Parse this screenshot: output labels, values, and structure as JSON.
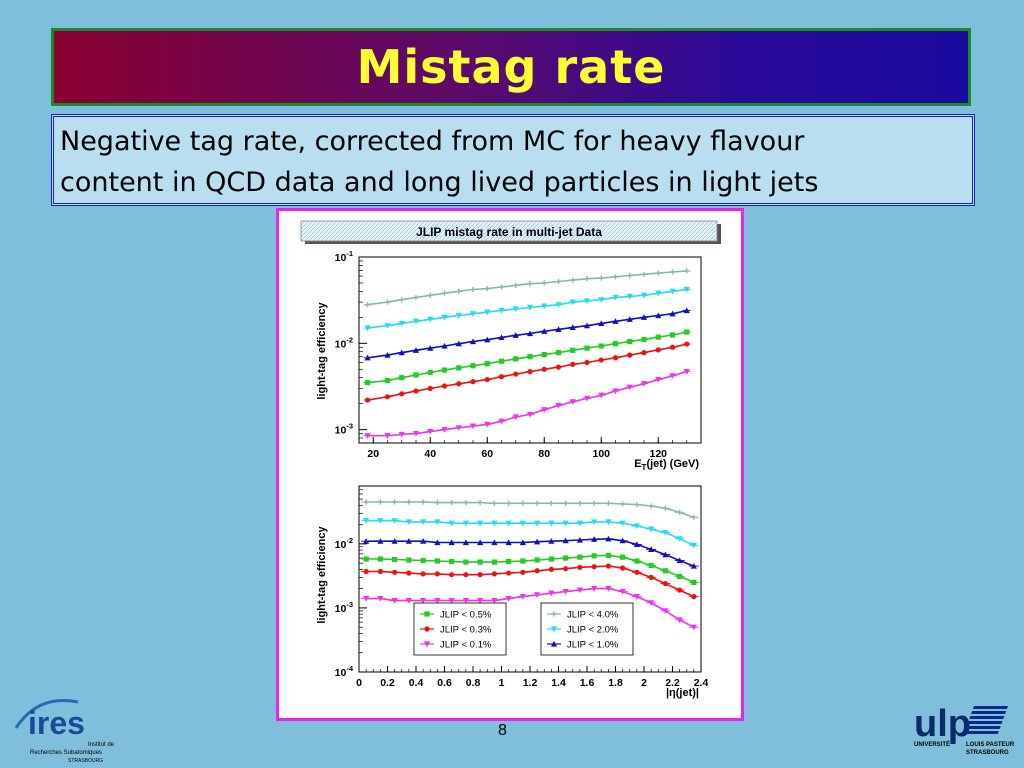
{
  "slide": {
    "title": "Mistag rate",
    "subtitle_line1": "Negative tag rate, corrected from MC for heavy flavour",
    "subtitle_line2": "content in QCD data and long lived particles in light jets",
    "page_number": "8"
  },
  "logos": {
    "ires_main": "ires",
    "ires_sub1": "Institut de",
    "ires_sub2": "Recherches Subatomiques",
    "ires_sub3": "STRASBOURG",
    "ulp_main": "ulp",
    "ulp_sub1": "UNIVERSITÉ",
    "ulp_sub2": "LOUIS PASTEUR",
    "ulp_sub3": "STRASBOURG"
  },
  "colors": {
    "jlip_0.5": "#22cc22",
    "jlip_0.3": "#ee1111",
    "jlip_0.1": "#ee33ee",
    "jlip_4.0": "#88bb99",
    "jlip_2.0": "#22ddee",
    "jlip_1.0": "#1111bb"
  },
  "chart_data": [
    {
      "type": "line",
      "title": "JLIP mistag rate in multi-jet Data",
      "xlabel": "E_T(jet) (GeV)",
      "ylabel": "light-tag efficiency",
      "xlim": [
        15,
        135
      ],
      "ylim": [
        0.0007,
        0.1
      ],
      "yscale": "log",
      "x_ticks": [
        20,
        40,
        60,
        80,
        100,
        120
      ],
      "y_ticks": [
        {
          "value": 0.001,
          "base": "10",
          "exp": "-3"
        },
        {
          "value": 0.01,
          "base": "10",
          "exp": "-2"
        },
        {
          "value": 0.1,
          "base": "10",
          "exp": "-1"
        }
      ],
      "x": [
        18,
        25,
        30,
        35,
        40,
        45,
        50,
        55,
        60,
        65,
        70,
        75,
        80,
        85,
        90,
        95,
        100,
        105,
        110,
        115,
        120,
        125,
        130
      ],
      "series": [
        {
          "name": "JLIP < 4.0%",
          "color_key": "jlip_4.0",
          "marker": "plus",
          "values": [
            0.028,
            0.03,
            0.032,
            0.034,
            0.036,
            0.038,
            0.04,
            0.042,
            0.043,
            0.045,
            0.047,
            0.049,
            0.05,
            0.052,
            0.054,
            0.056,
            0.057,
            0.059,
            0.061,
            0.063,
            0.065,
            0.067,
            0.069
          ]
        },
        {
          "name": "JLIP < 2.0%",
          "color_key": "jlip_2.0",
          "marker": "triangle-down",
          "values": [
            0.015,
            0.016,
            0.017,
            0.018,
            0.019,
            0.02,
            0.021,
            0.022,
            0.023,
            0.024,
            0.025,
            0.026,
            0.027,
            0.028,
            0.03,
            0.031,
            0.032,
            0.034,
            0.035,
            0.036,
            0.038,
            0.04,
            0.042
          ]
        },
        {
          "name": "JLIP < 1.0%",
          "color_key": "jlip_1.0",
          "marker": "triangle",
          "values": [
            0.0068,
            0.0073,
            0.0078,
            0.0083,
            0.0088,
            0.0093,
            0.0099,
            0.0105,
            0.011,
            0.0117,
            0.0124,
            0.013,
            0.0138,
            0.0145,
            0.0153,
            0.016,
            0.017,
            0.018,
            0.019,
            0.02,
            0.021,
            0.022,
            0.024
          ]
        },
        {
          "name": "JLIP < 0.5%",
          "color_key": "jlip_0.5",
          "marker": "square",
          "values": [
            0.0035,
            0.0037,
            0.004,
            0.0043,
            0.0046,
            0.0049,
            0.0052,
            0.0055,
            0.0058,
            0.0062,
            0.0066,
            0.007,
            0.0074,
            0.0078,
            0.0083,
            0.0088,
            0.0093,
            0.0099,
            0.0105,
            0.0111,
            0.0118,
            0.0125,
            0.0135
          ]
        },
        {
          "name": "JLIP < 0.3%",
          "color_key": "jlip_0.3",
          "marker": "circle",
          "values": [
            0.0022,
            0.0024,
            0.0026,
            0.0028,
            0.003,
            0.0032,
            0.0034,
            0.0036,
            0.0038,
            0.0041,
            0.0044,
            0.0047,
            0.005,
            0.0053,
            0.0057,
            0.006,
            0.0064,
            0.0068,
            0.0073,
            0.0078,
            0.0084,
            0.009,
            0.0098
          ]
        },
        {
          "name": "JLIP < 0.1%",
          "color_key": "jlip_0.1",
          "marker": "triangle-down",
          "values": [
            0.00085,
            0.00085,
            0.00088,
            0.0009,
            0.00095,
            0.001,
            0.00105,
            0.0011,
            0.00115,
            0.00125,
            0.0014,
            0.0015,
            0.0017,
            0.0019,
            0.0021,
            0.0023,
            0.0025,
            0.0028,
            0.0031,
            0.0034,
            0.0038,
            0.0042,
            0.0047
          ]
        }
      ]
    },
    {
      "type": "line",
      "xlabel": "|η(jet)|",
      "ylabel": "light-tag efficiency",
      "xlim": [
        0,
        2.4
      ],
      "ylim": [
        0.0001,
        0.08
      ],
      "yscale": "log",
      "x_ticks": [
        0,
        0.2,
        0.4,
        0.6,
        0.8,
        1,
        1.2,
        1.4,
        1.6,
        1.8,
        2,
        2.2,
        2.4
      ],
      "y_ticks": [
        {
          "value": 0.0001,
          "base": "10",
          "exp": "-4"
        },
        {
          "value": 0.001,
          "base": "10",
          "exp": "-3"
        },
        {
          "value": 0.01,
          "base": "10",
          "exp": "-2"
        }
      ],
      "x": [
        0.05,
        0.15,
        0.25,
        0.35,
        0.45,
        0.55,
        0.65,
        0.75,
        0.85,
        0.95,
        1.05,
        1.15,
        1.25,
        1.35,
        1.45,
        1.55,
        1.65,
        1.75,
        1.85,
        1.95,
        2.05,
        2.15,
        2.25,
        2.35
      ],
      "series": [
        {
          "name": "JLIP < 4.0%",
          "color_key": "jlip_4.0",
          "marker": "plus",
          "values": [
            0.045,
            0.045,
            0.045,
            0.045,
            0.045,
            0.044,
            0.044,
            0.044,
            0.044,
            0.043,
            0.043,
            0.043,
            0.043,
            0.043,
            0.043,
            0.043,
            0.043,
            0.043,
            0.042,
            0.041,
            0.039,
            0.036,
            0.031,
            0.026
          ]
        },
        {
          "name": "JLIP < 2.0%",
          "color_key": "jlip_2.0",
          "marker": "triangle-down",
          "values": [
            0.023,
            0.023,
            0.023,
            0.022,
            0.022,
            0.022,
            0.021,
            0.021,
            0.021,
            0.021,
            0.021,
            0.021,
            0.021,
            0.021,
            0.021,
            0.021,
            0.022,
            0.022,
            0.021,
            0.019,
            0.017,
            0.015,
            0.012,
            0.0095
          ]
        },
        {
          "name": "JLIP < 1.0%",
          "color_key": "jlip_1.0",
          "marker": "triangle",
          "values": [
            0.011,
            0.011,
            0.011,
            0.011,
            0.011,
            0.0105,
            0.0105,
            0.0105,
            0.0105,
            0.0105,
            0.0105,
            0.0105,
            0.0108,
            0.011,
            0.0112,
            0.0115,
            0.0118,
            0.012,
            0.0112,
            0.0098,
            0.0082,
            0.0068,
            0.0055,
            0.0045
          ]
        },
        {
          "name": "JLIP < 0.5%",
          "color_key": "jlip_0.5",
          "marker": "square",
          "values": [
            0.0058,
            0.0058,
            0.0057,
            0.0056,
            0.0055,
            0.0054,
            0.0053,
            0.0052,
            0.0052,
            0.0052,
            0.0053,
            0.0054,
            0.0056,
            0.0058,
            0.006,
            0.0062,
            0.0065,
            0.0066,
            0.0062,
            0.0054,
            0.0046,
            0.0038,
            0.0031,
            0.0025
          ]
        },
        {
          "name": "JLIP < 0.3%",
          "color_key": "jlip_0.3",
          "marker": "circle",
          "values": [
            0.0037,
            0.0037,
            0.0036,
            0.0035,
            0.0034,
            0.0034,
            0.0033,
            0.0033,
            0.0033,
            0.0034,
            0.0035,
            0.0036,
            0.0038,
            0.004,
            0.0041,
            0.0043,
            0.0044,
            0.0045,
            0.0042,
            0.0036,
            0.003,
            0.0024,
            0.0019,
            0.0015
          ]
        },
        {
          "name": "JLIP < 0.1%",
          "color_key": "jlip_0.1",
          "marker": "triangle-down",
          "values": [
            0.0014,
            0.0014,
            0.0013,
            0.0013,
            0.0013,
            0.0013,
            0.0013,
            0.0013,
            0.0013,
            0.0013,
            0.0014,
            0.0015,
            0.0016,
            0.0017,
            0.0018,
            0.0019,
            0.002,
            0.002,
            0.0018,
            0.0015,
            0.0012,
            0.0009,
            0.00065,
            0.0005
          ]
        }
      ],
      "legend_left": [
        "JLIP < 0.5%",
        "JLIP < 0.3%",
        "JLIP < 0.1%"
      ],
      "legend_right": [
        "JLIP < 4.0%",
        "JLIP < 2.0%",
        "JLIP < 1.0%"
      ],
      "legend_placement": "bottom"
    }
  ]
}
